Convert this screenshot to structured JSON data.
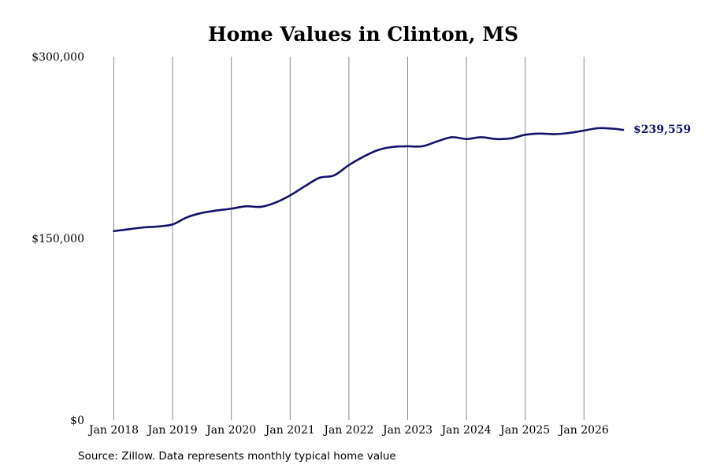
{
  "chart_data": {
    "type": "line",
    "title": "Home Values in Clinton, MS",
    "xlabel": "",
    "ylabel": "",
    "ylim": [
      0,
      300000
    ],
    "y_ticks": [
      {
        "value": 0,
        "label": "$0"
      },
      {
        "value": 150000,
        "label": "$150,000"
      },
      {
        "value": 300000,
        "label": "$300,000"
      }
    ],
    "x_ticks": [
      {
        "year": 2018,
        "label": "Jan 2018"
      },
      {
        "year": 2019,
        "label": "Jan 2019"
      },
      {
        "year": 2020,
        "label": "Jan 2020"
      },
      {
        "year": 2021,
        "label": "Jan 2021"
      },
      {
        "year": 2022,
        "label": "Jan 2022"
      },
      {
        "year": 2023,
        "label": "Jan 2023"
      },
      {
        "year": 2024,
        "label": "Jan 2024"
      },
      {
        "year": 2025,
        "label": "Jan 2025"
      },
      {
        "year": 2026,
        "label": "Jan 2026"
      }
    ],
    "grid": "vertical",
    "series": [
      {
        "color": "#13136b",
        "points": [
          [
            "2018-01",
            156000
          ],
          [
            "2018-04",
            157500
          ],
          [
            "2018-07",
            159000
          ],
          [
            "2018-10",
            159800
          ],
          [
            "2019-01",
            161500
          ],
          [
            "2019-04",
            167500
          ],
          [
            "2019-07",
            171000
          ],
          [
            "2019-10",
            173000
          ],
          [
            "2020-01",
            174500
          ],
          [
            "2020-04",
            176500
          ],
          [
            "2020-07",
            176000
          ],
          [
            "2020-10",
            179500
          ],
          [
            "2021-01",
            185500
          ],
          [
            "2021-04",
            193000
          ],
          [
            "2021-07",
            200000
          ],
          [
            "2021-10",
            202000
          ],
          [
            "2022-01",
            210500
          ],
          [
            "2022-04",
            217500
          ],
          [
            "2022-07",
            223000
          ],
          [
            "2022-10",
            225500
          ],
          [
            "2023-01",
            226000
          ],
          [
            "2023-04",
            226000
          ],
          [
            "2023-07",
            230000
          ],
          [
            "2023-10",
            233500
          ],
          [
            "2024-01",
            232000
          ],
          [
            "2024-04",
            233500
          ],
          [
            "2024-07",
            232000
          ],
          [
            "2024-10",
            232500
          ],
          [
            "2025-01",
            235500
          ],
          [
            "2025-04",
            236500
          ],
          [
            "2025-07",
            236000
          ],
          [
            "2025-10",
            237000
          ],
          [
            "2026-01",
            239000
          ],
          [
            "2026-04",
            241000
          ],
          [
            "2026-07",
            240500
          ],
          [
            "2026-09",
            239559
          ]
        ]
      }
    ],
    "annotations": [
      {
        "text": "$239,559",
        "color": "#13136b",
        "attached_to": "last-point"
      }
    ]
  },
  "footer": {
    "source": "Source: Zillow. Data represents monthly typical home value"
  }
}
